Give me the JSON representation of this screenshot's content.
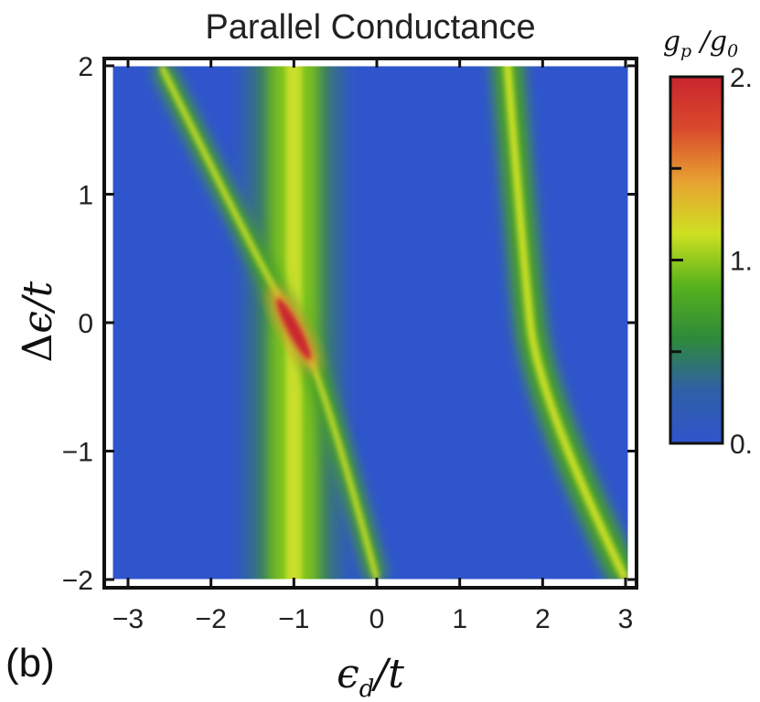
{
  "chart_data": {
    "type": "heatmap",
    "title": "Parallel Conductance",
    "panel_label": "(b)",
    "xlabel": "ϵd/t",
    "ylabel": "Δϵ/t",
    "xlim": [
      -3.1,
      3.1
    ],
    "ylim": [
      -2.05,
      2.05
    ],
    "xticks": [
      -3,
      -2,
      -1,
      0,
      1,
      2,
      3
    ],
    "xtick_labels": [
      "−3",
      "−2",
      "−1",
      "0",
      "1",
      "2",
      "3"
    ],
    "yticks": [
      -2,
      -1,
      0,
      1,
      2
    ],
    "ytick_labels": [
      "−2",
      "−1",
      "0",
      "1",
      "2"
    ],
    "colorbar": {
      "label": "gp/g0",
      "range": [
        0,
        2
      ],
      "ticks": [
        0,
        1,
        2
      ],
      "tick_labels": [
        "0.",
        "1.",
        "2."
      ],
      "colors": [
        "#2f55cc",
        "#2f5fa8",
        "#2e8a3a",
        "#56b21c",
        "#cde021",
        "#e8a132",
        "#d94a2c",
        "#c9252d"
      ]
    },
    "features": [
      {
        "name": "vertical band",
        "x_center": -1.0,
        "peak_value": 1.0
      },
      {
        "name": "diagonal resonance",
        "points": [
          [
            -2.6,
            2.0
          ],
          [
            -1.0,
            0.0
          ],
          [
            0.0,
            -2.0
          ]
        ],
        "peak_value": 2.0,
        "peak_at": [
          -1.0,
          -0.05
        ]
      },
      {
        "name": "right curve",
        "points": [
          [
            1.55,
            2.0
          ],
          [
            1.85,
            0.0
          ],
          [
            3.0,
            -2.0
          ]
        ],
        "peak_value": 1.0
      }
    ]
  }
}
